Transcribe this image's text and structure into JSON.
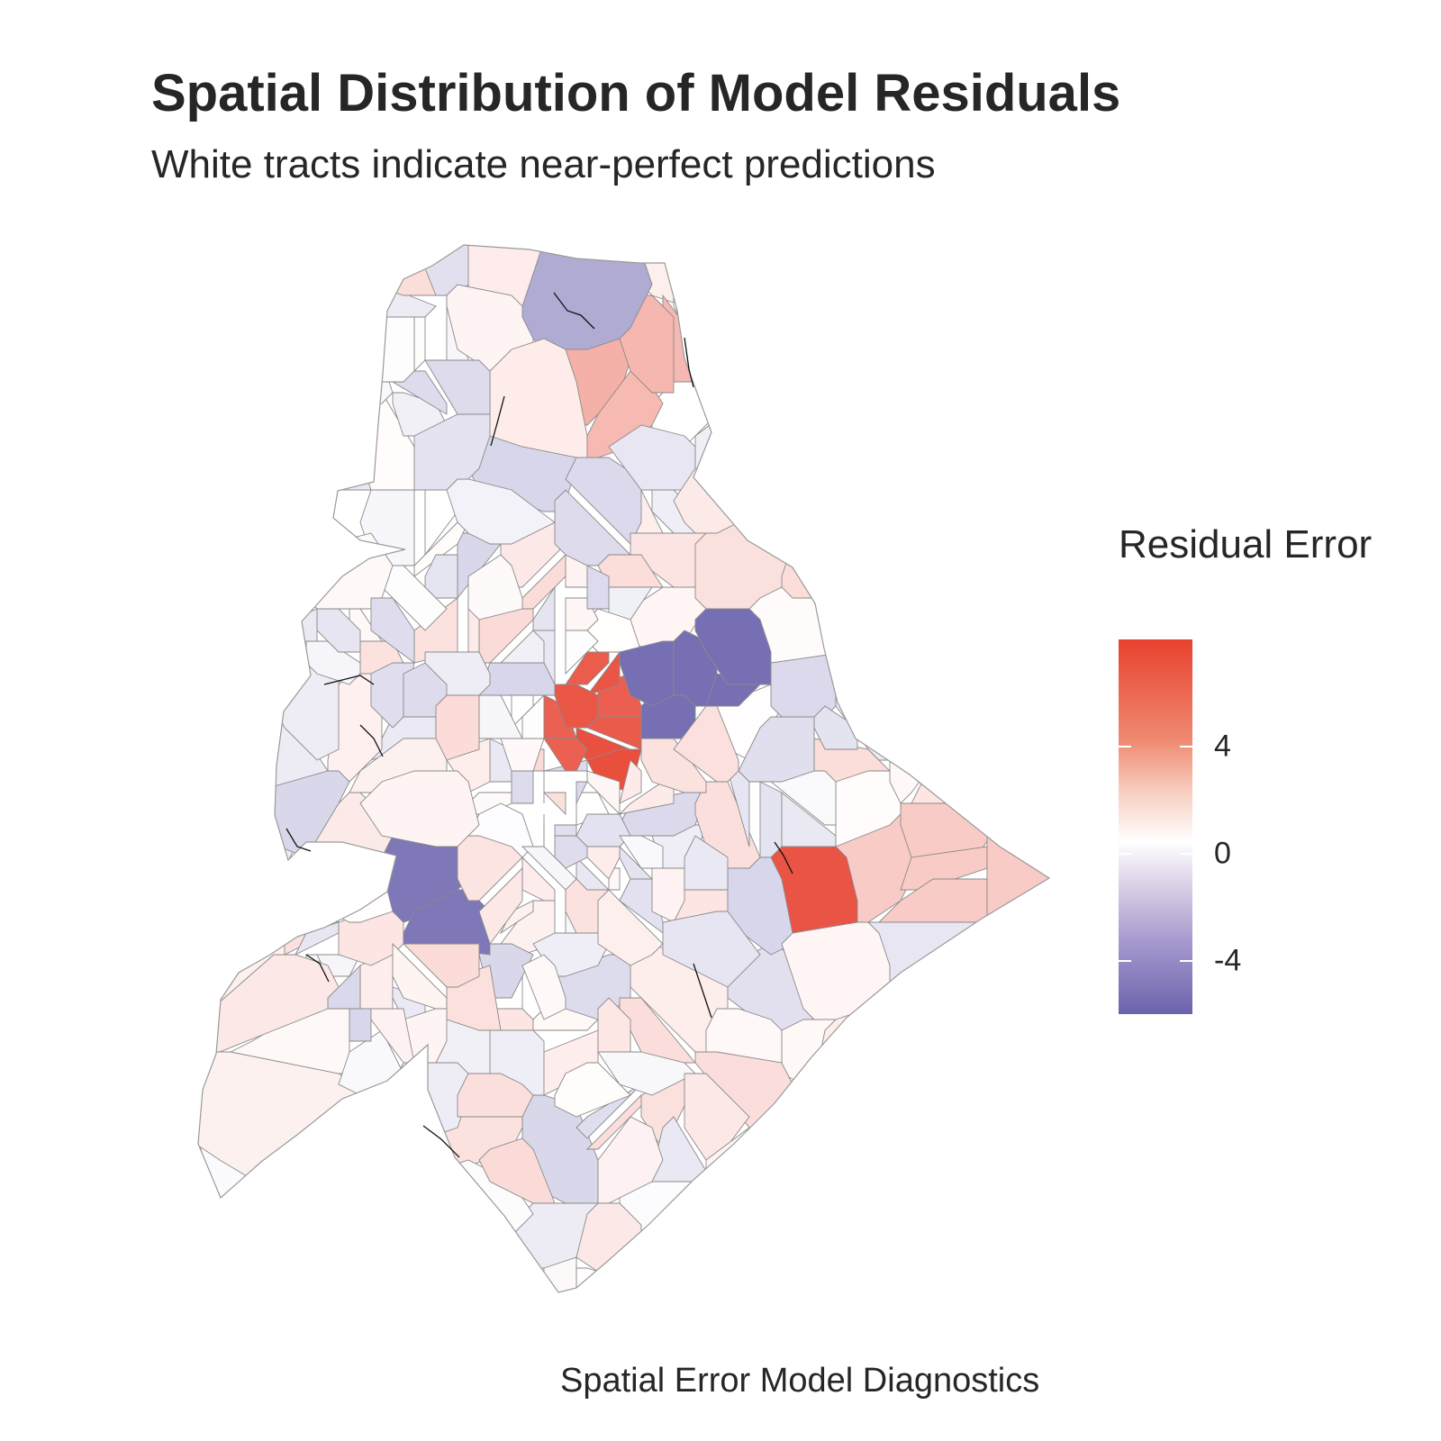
{
  "title": "Spatial Distribution of Model Residuals",
  "subtitle": "White tracts indicate near-perfect predictions",
  "caption": "Spatial Error Model Diagnostics",
  "legend": {
    "title": "Residual Error",
    "ticks": [
      {
        "label": "4",
        "value": 4
      },
      {
        "label": "0",
        "value": 0
      },
      {
        "label": "-4",
        "value": -4
      }
    ],
    "range": [
      -6.0,
      8.0
    ],
    "low_color": "#6a62ad",
    "mid_color": "#ffffff",
    "high_color": "#e8412f"
  },
  "map": {
    "description_type": "choropleth of census tracts",
    "border_color": "#8a8a8a",
    "outline_color": "#111111"
  }
}
